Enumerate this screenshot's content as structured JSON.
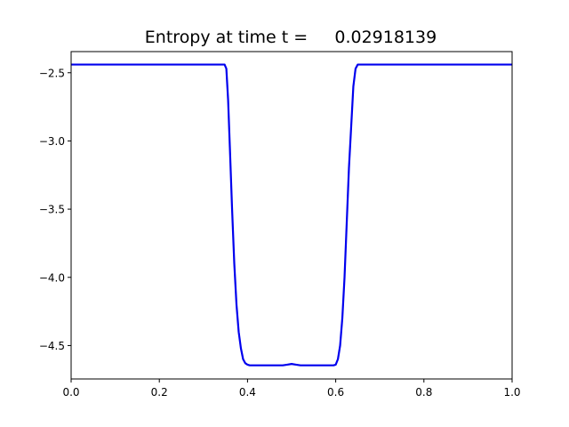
{
  "chart_data": {
    "type": "line",
    "title": "Entropy at time t =     0.02918139",
    "xlabel": "",
    "ylabel": "",
    "xlim": [
      0.0,
      1.0
    ],
    "ylim": [
      -4.745,
      -2.345
    ],
    "x_ticks": [
      0.0,
      0.2,
      0.4,
      0.6,
      0.8,
      1.0
    ],
    "x_tick_labels": [
      "0.0",
      "0.2",
      "0.4",
      "0.6",
      "0.8",
      "1.0"
    ],
    "y_ticks": [
      -2.5,
      -3.0,
      -3.5,
      -4.0,
      -4.5
    ],
    "y_tick_labels": [
      "−2.5",
      "−3.0",
      "−3.5",
      "−4.0",
      "−4.5"
    ],
    "grid": false,
    "series": [
      {
        "color": "#0000ee",
        "x": [
          0.0,
          0.34,
          0.348,
          0.352,
          0.356,
          0.36,
          0.365,
          0.37,
          0.375,
          0.38,
          0.385,
          0.39,
          0.395,
          0.4,
          0.405,
          0.41,
          0.42,
          0.44,
          0.48,
          0.49,
          0.5,
          0.51,
          0.52,
          0.56,
          0.59,
          0.595,
          0.6,
          0.605,
          0.61,
          0.615,
          0.62,
          0.625,
          0.63,
          0.635,
          0.64,
          0.645,
          0.65,
          0.655,
          0.66,
          1.0
        ],
        "y": [
          -2.44,
          -2.44,
          -2.44,
          -2.47,
          -2.7,
          -3.05,
          -3.5,
          -3.9,
          -4.2,
          -4.4,
          -4.52,
          -4.6,
          -4.63,
          -4.64,
          -4.645,
          -4.645,
          -4.645,
          -4.645,
          -4.645,
          -4.64,
          -4.635,
          -4.64,
          -4.645,
          -4.645,
          -4.645,
          -4.645,
          -4.64,
          -4.6,
          -4.5,
          -4.3,
          -4.0,
          -3.6,
          -3.2,
          -2.9,
          -2.6,
          -2.47,
          -2.44,
          -2.44,
          -2.44,
          -2.44
        ]
      }
    ]
  }
}
